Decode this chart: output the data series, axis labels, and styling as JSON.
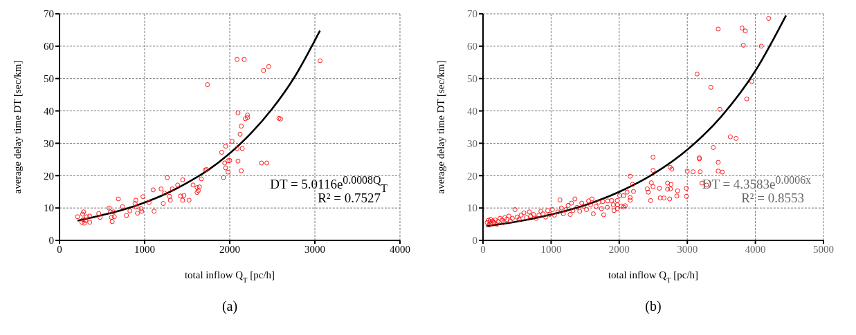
{
  "chart_data": [
    {
      "type": "scatter",
      "subtitle": "(a)",
      "xlabel": "total inflow Q$_{T}$ [pc/h]",
      "ylabel": "average delay time  DT [sec/km]",
      "xlim": [
        0,
        4000
      ],
      "xticks": [
        0,
        1000,
        2000,
        3000,
        4000
      ],
      "ylim": [
        0,
        70
      ],
      "yticks": [
        0,
        10,
        20,
        30,
        40,
        50,
        60,
        70
      ],
      "grid": true,
      "marker": "circle",
      "annotations": [
        "DT = 5.0116e$^{0.0008Q}$$_{T}$",
        "R² = 0.7527"
      ],
      "series": [
        {
          "color": "#ff0000",
          "x": [
            211,
            272,
            283,
            263,
            291,
            319,
            355,
            355,
            277,
            305,
            461,
            477,
            583,
            597,
            633,
            619,
            644,
            611,
            691,
            741,
            786,
            827,
            888,
            897,
            902,
            916,
            958,
            966,
            980,
            1052,
            1100,
            1111,
            1194,
            1219,
            1233,
            1266,
            1291,
            1302,
            1325,
            1388,
            1422,
            1447,
            1447,
            1461,
            1522,
            1569,
            1616,
            1644,
            1616,
            1630,
            1666,
            1711,
            1727,
            1738,
            1905,
            1927,
            1941,
            1952,
            1952,
            1980,
            1980,
            2000,
            2027,
            2086,
            2097,
            2122,
            2136,
            2136,
            2147,
            2097,
            2183,
            2208,
            2208,
            2086,
            2169,
            2397,
            2458,
            2372,
            2436,
            2578,
            2597,
            3061
          ],
          "values": [
            7.3,
            8.1,
            8.8,
            5.6,
            5.3,
            7.3,
            7.5,
            5.6,
            6.4,
            6.1,
            8.3,
            7.1,
            10.0,
            8.8,
            8.8,
            5.8,
            7.3,
            7.1,
            12.8,
            10.4,
            7.7,
            9.1,
            11.4,
            12.4,
            10.3,
            8.4,
            9.8,
            9.0,
            13.5,
            11.7,
            15.6,
            9.0,
            15.9,
            11.4,
            14.6,
            19.4,
            13.6,
            12.4,
            15.9,
            17.1,
            13.7,
            18.7,
            12.4,
            13.9,
            12.4,
            17.1,
            16.3,
            16.5,
            14.8,
            15.4,
            19.0,
            21.7,
            21.9,
            48.1,
            27.2,
            19.4,
            23.9,
            29.1,
            22.4,
            21.1,
            24.6,
            24.7,
            30.6,
            28.4,
            24.5,
            32.8,
            35.3,
            21.5,
            28.4,
            39.4,
            37.6,
            37.9,
            38.7,
            55.9,
            55.9,
            52.5,
            53.7,
            23.9,
            23.9,
            37.7,
            37.5,
            55.5
          ]
        },
        {
          "type": "line",
          "color": "#000000",
          "marker": "none",
          "x": [
            211,
            500,
            750,
            1000,
            1250,
            1500,
            1750,
            2000,
            2250,
            2500,
            2750,
            3060
          ],
          "values": [
            6.1,
            7.8,
            9.5,
            11.7,
            14.4,
            17.8,
            21.8,
            26.9,
            33.1,
            40.7,
            50.0,
            64.8
          ]
        }
      ]
    },
    {
      "type": "scatter",
      "subtitle": "(b)",
      "xlabel": "total inflow Q$_{T}$ [pc/h]",
      "ylabel": "average delay time  DT [sec/km]",
      "xlim": [
        0,
        5000
      ],
      "xticks": [
        0,
        1000,
        2000,
        3000,
        4000,
        5000
      ],
      "ylim": [
        0,
        70
      ],
      "yticks": [
        0,
        10,
        20,
        30,
        40,
        50,
        60,
        70
      ],
      "grid": true,
      "marker": "circle",
      "annotations": [
        "DT = 4.3583e$^{0.0006x}$",
        "R² = 0.8553"
      ],
      "series": [
        {
          "color": "#ff0000",
          "x": [
            60,
            80,
            90,
            100,
            110,
            120,
            140,
            160,
            180,
            200,
            220,
            250,
            280,
            300,
            320,
            350,
            380,
            400,
            430,
            470,
            500,
            530,
            560,
            600,
            640,
            680,
            700,
            740,
            780,
            820,
            850,
            880,
            920,
            950,
            980,
            1020,
            1050,
            1100,
            1130,
            1150,
            1180,
            1220,
            1250,
            1280,
            1300,
            1320,
            1350,
            1380,
            1420,
            1450,
            1480,
            1520,
            1550,
            1580,
            1600,
            1620,
            1660,
            1700,
            1740,
            1760,
            1773,
            1826,
            1833,
            1889,
            1913,
            1924,
            1973,
            1973,
            1973,
            2007,
            2029,
            2063,
            2063,
            2088,
            2116,
            2161,
            2161,
            2161,
            2196,
            2210,
            2413,
            2427,
            2462,
            2472,
            2497,
            2497,
            2497,
            2591,
            2602,
            2657,
            2710,
            2710,
            2741,
            2748,
            2752,
            2762,
            2773,
            2846,
            2857,
            2986,
            2986,
            2999,
            3084,
            3143,
            3175,
            3178,
            3189,
            3216,
            3283,
            3346,
            3381,
            3454,
            3454,
            3454,
            3478,
            3514,
            3632,
            3716,
            3803,
            3824,
            3852,
            3873,
            3947,
            4087,
            4195
          ],
          "values": [
            5.5,
            6.2,
            4.8,
            5.8,
            6.5,
            5.2,
            6.0,
            5.5,
            6.3,
            5.0,
            5.8,
            6.8,
            6.2,
            5.5,
            7.0,
            6.5,
            7.5,
            6.0,
            6.8,
            9.5,
            7.2,
            6.5,
            7.8,
            8.5,
            7.0,
            8.8,
            7.5,
            8.0,
            6.8,
            7.8,
            9.0,
            8.2,
            7.2,
            9.2,
            8.0,
            9.5,
            7.8,
            8.8,
            12.5,
            10.0,
            8.2,
            9.5,
            10.8,
            8.0,
            11.5,
            9.2,
            12.8,
            10.2,
            9.0,
            11.5,
            10.5,
            9.5,
            12.2,
            11.0,
            12.8,
            8.2,
            10.5,
            11.8,
            9.8,
            12.0,
            7.9,
            10.2,
            12.2,
            12.3,
            11.0,
            9.2,
            12.3,
            11.0,
            9.8,
            13.9,
            10.6,
            13.8,
            10.3,
            10.7,
            14.9,
            19.8,
            13.2,
            12.4,
            17.3,
            15.1,
            15.9,
            14.9,
            12.3,
            17.8,
            25.7,
            21.6,
            16.6,
            16.1,
            13.1,
            13.1,
            17.7,
            15.8,
            12.8,
            22.6,
            15.9,
            17.3,
            22.0,
            13.7,
            15.3,
            16.1,
            13.6,
            21.4,
            21.2,
            51.4,
            25.5,
            25.2,
            21.2,
            17.7,
            17.1,
            47.3,
            28.7,
            65.3,
            24.1,
            21.4,
            40.5,
            21.1,
            32.0,
            31.5,
            65.6,
            60.3,
            64.7,
            43.7,
            49.1,
            60.0,
            68.6
          ]
        },
        {
          "type": "line",
          "color": "#000000",
          "marker": "none",
          "x": [
            50,
            500,
            1000,
            1500,
            2000,
            2500,
            3000,
            3500,
            4000,
            4450
          ],
          "values": [
            4.4,
            5.8,
            8.0,
            10.9,
            15.0,
            20.5,
            28.0,
            38.3,
            52.4,
            69.5
          ]
        }
      ]
    }
  ]
}
